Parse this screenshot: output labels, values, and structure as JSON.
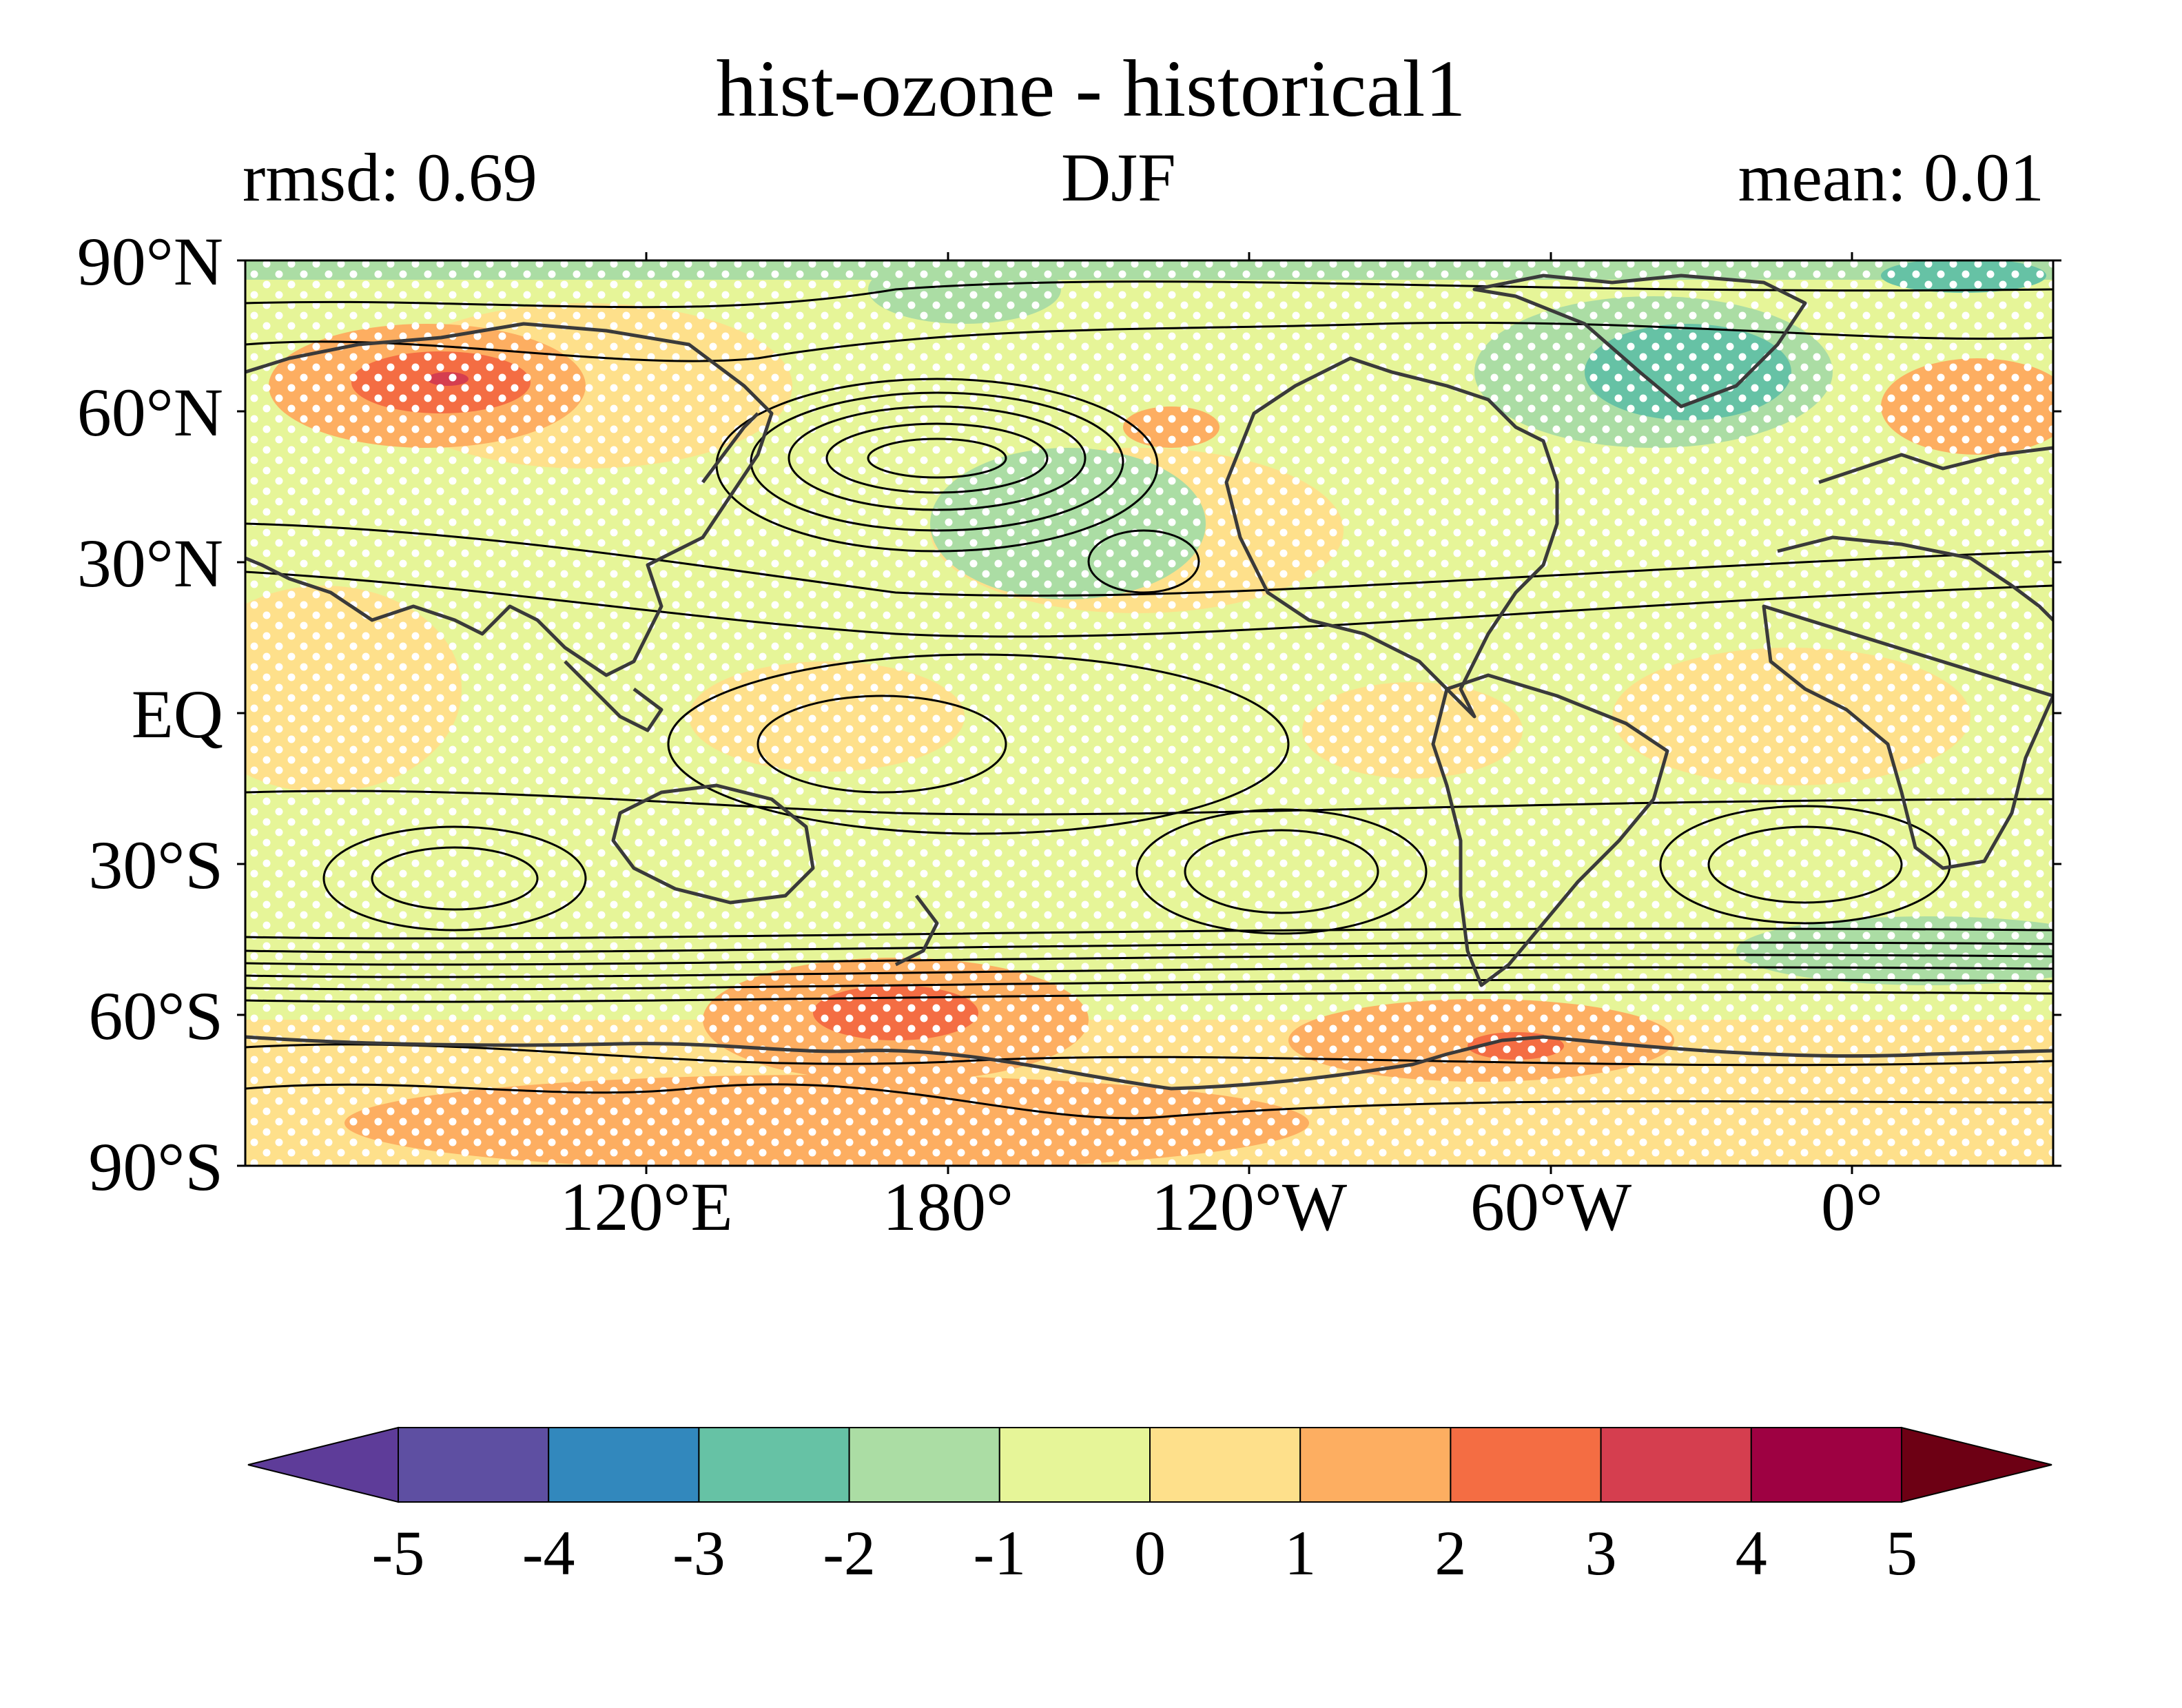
{
  "header": {
    "title": "hist-ozone - historical1",
    "left_stat": "rmsd: 0.69",
    "season": "DJF",
    "right_stat": "mean: 0.01"
  },
  "map": {
    "projection": "PlateCarree",
    "central_longitude": "150E",
    "lat_ticks": [
      "90°N",
      "60°N",
      "30°N",
      "EQ",
      "30°S",
      "60°S",
      "90°S"
    ],
    "lon_ticks": [
      "120°E",
      "180°",
      "120°W",
      "60°W",
      "0°"
    ],
    "features": [
      "coastlines",
      "contour-lines",
      "significance-stippling"
    ],
    "background_color": "#e6f598"
  },
  "colorbar": {
    "ticks": [
      "-5",
      "-4",
      "-3",
      "-2",
      "-1",
      "0",
      "1",
      "2",
      "3",
      "4",
      "5"
    ],
    "colors": [
      "#5e3c99",
      "#5e4fa2",
      "#3288bd",
      "#66c2a5",
      "#abdda4",
      "#e6f598",
      "#fee08b",
      "#fdae61",
      "#f46d43",
      "#d53e4f",
      "#9e0142",
      "#6d0014"
    ],
    "extend": "both"
  }
}
